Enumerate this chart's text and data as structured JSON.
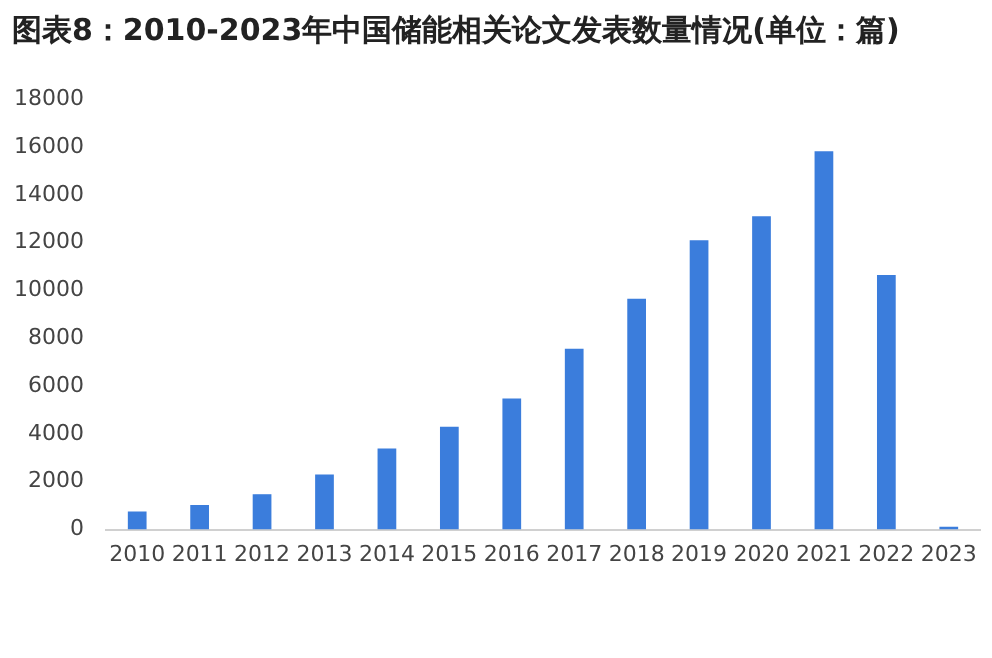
{
  "chart_data": {
    "type": "bar",
    "title": "图表8：2010-2023年中国储能相关论文发表数量情况(单位：篇)",
    "categories": [
      "2010",
      "2011",
      "2012",
      "2013",
      "2014",
      "2015",
      "2016",
      "2017",
      "2018",
      "2019",
      "2020",
      "2021",
      "2022",
      "2023"
    ],
    "values": [
      760,
      1030,
      1480,
      2300,
      3390,
      4300,
      5480,
      7560,
      9650,
      12100,
      13100,
      15820,
      10650,
      120
    ],
    "color": "#3b7ddc",
    "ylim": [
      0,
      18000
    ],
    "yticks": [
      0,
      2000,
      4000,
      6000,
      8000,
      10000,
      12000,
      14000,
      16000,
      18000
    ],
    "grid": false,
    "legend": false
  }
}
